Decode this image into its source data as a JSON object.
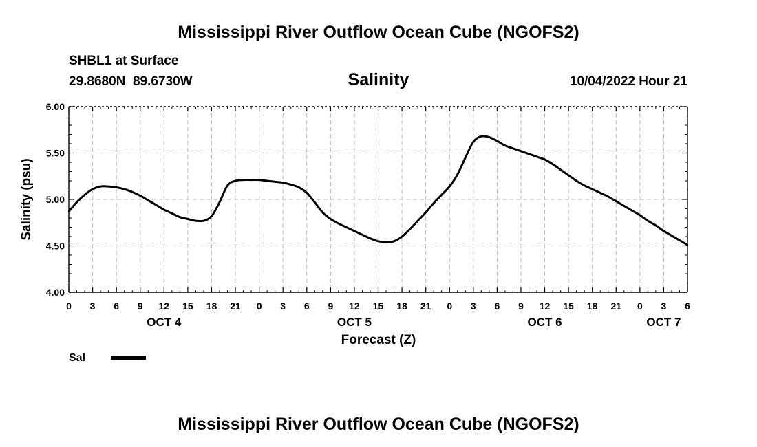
{
  "page": {
    "title_top": "Mississippi River Outflow Ocean Cube (NGOFS2)",
    "title_bottom": "Mississippi River Outflow Ocean Cube (NGOFS2)",
    "station": "SHBL1 at Surface",
    "coordinates": "29.8680N  89.6730W",
    "variable": "Salinity",
    "datetime": "10/04/2022 Hour 21"
  },
  "chart_data": {
    "type": "line",
    "title": "Salinity",
    "xlabel": "Forecast (Z)",
    "ylabel": "Salinity (psu)",
    "ylim": [
      4.0,
      6.0
    ],
    "yticks": [
      "4.00",
      "4.50",
      "5.00",
      "5.50",
      "6.00"
    ],
    "xlim": [
      0,
      78
    ],
    "xtick_hours": [
      0,
      3,
      6,
      9,
      12,
      15,
      18,
      21,
      24,
      27,
      30,
      33,
      36,
      39,
      42,
      45,
      48,
      51,
      54,
      57,
      60,
      63,
      66,
      69,
      72,
      75,
      78
    ],
    "xtick_labels": [
      "0",
      "3",
      "6",
      "9",
      "12",
      "15",
      "18",
      "21",
      "0",
      "3",
      "6",
      "9",
      "12",
      "15",
      "18",
      "21",
      "0",
      "3",
      "6",
      "9",
      "12",
      "15",
      "18",
      "21",
      "0",
      "3",
      "6"
    ],
    "day_labels": [
      {
        "label": "OCT 4",
        "hour": 12
      },
      {
        "label": "OCT 5",
        "hour": 36
      },
      {
        "label": "OCT 6",
        "hour": 60
      },
      {
        "label": "OCT 7",
        "hour": 75
      }
    ],
    "grid": true,
    "legend": {
      "position": "bottom-left",
      "entries": [
        "Sal"
      ]
    },
    "series": [
      {
        "name": "Sal",
        "x": [
          0,
          1,
          2,
          3,
          4,
          5,
          6,
          7,
          8,
          9,
          10,
          11,
          12,
          13,
          14,
          15,
          16,
          17,
          18,
          19,
          20,
          21,
          22,
          23,
          24,
          25,
          26,
          27,
          28,
          29,
          30,
          31,
          32,
          33,
          34,
          35,
          36,
          37,
          38,
          39,
          40,
          41,
          42,
          43,
          44,
          45,
          46,
          47,
          48,
          49,
          50,
          51,
          52,
          53,
          54,
          55,
          56,
          57,
          58,
          59,
          60,
          61,
          62,
          63,
          64,
          65,
          66,
          67,
          68,
          69,
          70,
          71,
          72,
          73,
          74,
          75,
          76,
          77,
          78
        ],
        "values": [
          4.87,
          4.97,
          5.05,
          5.11,
          5.14,
          5.14,
          5.13,
          5.11,
          5.08,
          5.04,
          4.99,
          4.94,
          4.89,
          4.85,
          4.81,
          4.79,
          4.77,
          4.77,
          4.82,
          4.97,
          5.15,
          5.2,
          5.21,
          5.21,
          5.21,
          5.2,
          5.19,
          5.18,
          5.16,
          5.13,
          5.07,
          4.97,
          4.86,
          4.79,
          4.74,
          4.7,
          4.66,
          4.62,
          4.58,
          4.55,
          4.54,
          4.55,
          4.6,
          4.68,
          4.77,
          4.86,
          4.96,
          5.05,
          5.14,
          5.27,
          5.45,
          5.62,
          5.68,
          5.67,
          5.63,
          5.58,
          5.55,
          5.52,
          5.49,
          5.46,
          5.43,
          5.38,
          5.32,
          5.26,
          5.2,
          5.15,
          5.11,
          5.07,
          5.03,
          4.98,
          4.93,
          4.88,
          4.83,
          4.77,
          4.72,
          4.66,
          4.61,
          4.56,
          4.51
        ]
      }
    ]
  }
}
